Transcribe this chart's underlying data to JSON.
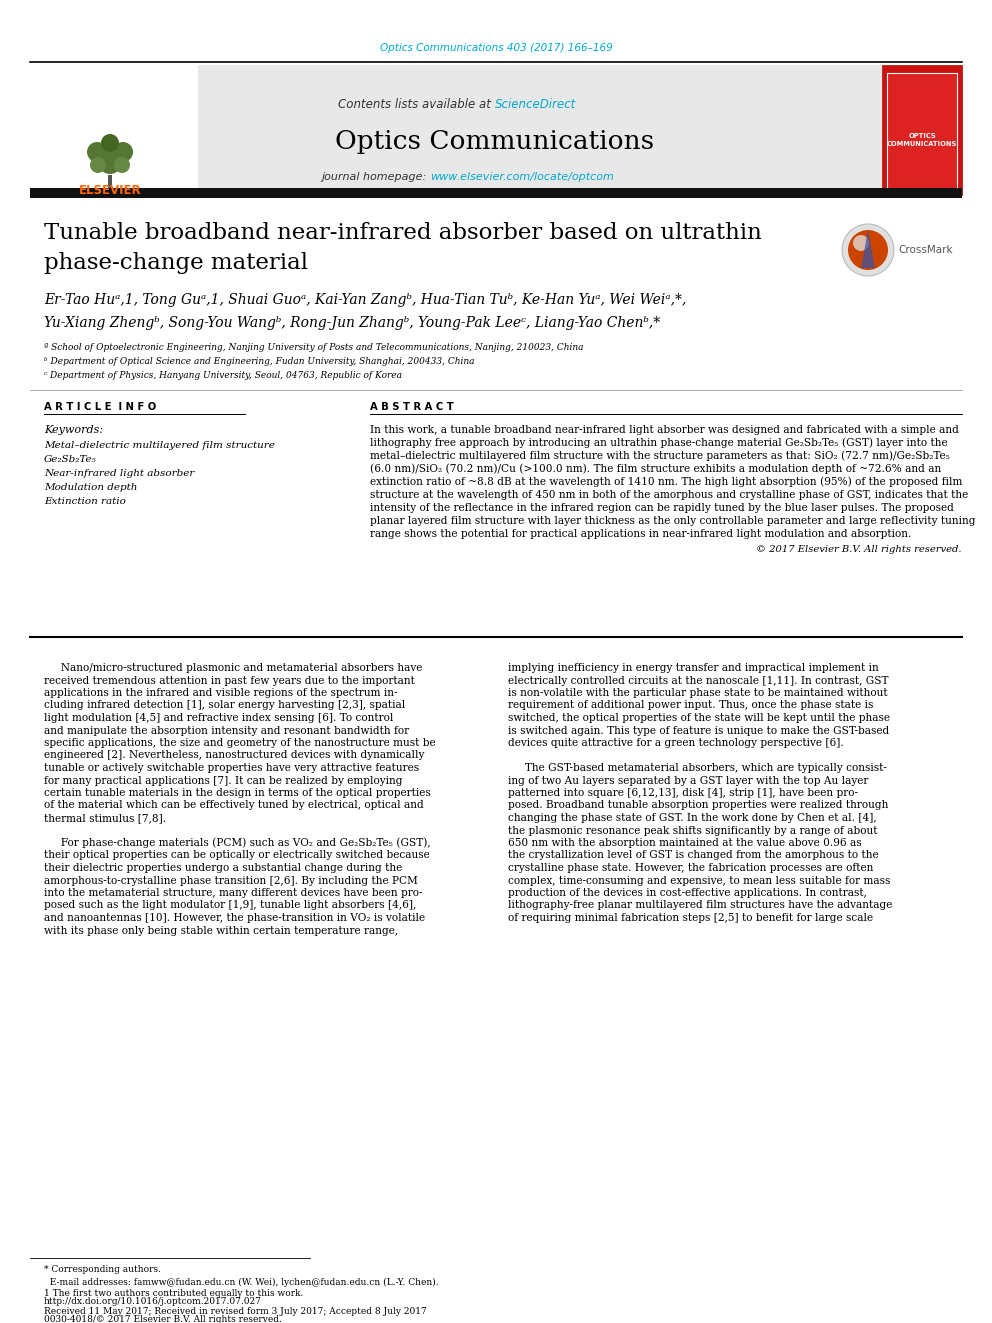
{
  "page_bg": "#ffffff",
  "header_journal_ref": "Optics Communications 403 (2017) 166–169",
  "header_journal_ref_color": "#00aacc",
  "journal_header_bg": "#e8e8e8",
  "journal_name": "Optics Communications",
  "contents_text": "Contents lists available at ",
  "sciencedirect_text": "ScienceDirect",
  "sciencedirect_color": "#00aacc",
  "journal_homepage": "journal homepage: ",
  "journal_url": "www.elsevier.com/locate/optcom",
  "journal_url_color": "#00aacc",
  "title_line1": "Tunable broadband near-infrared absorber based on ultrathin",
  "title_line2": "phase-change material",
  "authors_line1": "Er-Tao Huᵃ,1, Tong Guᵃ,1, Shuai Guoᵃ, Kai-Yan Zangᵇ, Hua-Tian Tuᵇ, Ke-Han Yuᵃ, Wei Weiᵃ,*,",
  "authors_line2": "Yu-Xiang Zhengᵇ, Song-You Wangᵇ, Rong-Jun Zhangᵇ, Young-Pak Leeᶜ, Liang-Yao Chenᵇ,*",
  "affil_a": "ª School of Optoelectronic Engineering, Nanjing University of Posts and Telecommunications, Nanjing, 210023, China",
  "affil_b": "ᵇ Department of Optical Science and Engineering, Fudan University, Shanghai, 200433, China",
  "affil_c": "ᶜ Department of Physics, Hanyang University, Seoul, 04763, Republic of Korea",
  "article_info_label": "A R T I C L E  I N F O",
  "abstract_label": "A B S T R A C T",
  "keywords_label": "Keywords:",
  "keywords": [
    "Metal–dielectric multilayered film structure",
    "Ge₂Sb₂Te₅",
    "Near-infrared light absorber",
    "Modulation depth",
    "Extinction ratio"
  ],
  "abstract_lines": [
    "In this work, a tunable broadband near-infrared light absorber was designed and fabricated with a simple and",
    "lithography free approach by introducing an ultrathin phase-change material Ge₂Sb₂Te₅ (GST) layer into the",
    "metal–dielectric multilayered film structure with the structure parameters as that: SiO₂ (72.7 nm)/Ge₂Sb₂Te₅",
    "(6.0 nm)/SiO₂ (70.2 nm)/Cu (>100.0 nm). The film structure exhibits a modulation depth of ~72.6% and an",
    "extinction ratio of ~8.8 dB at the wavelength of 1410 nm. The high light absorption (95%) of the proposed film",
    "structure at the wavelength of 450 nm in both of the amorphous and crystalline phase of GST, indicates that the",
    "intensity of the reflectance in the infrared region can be rapidly tuned by the blue laser pulses. The proposed",
    "planar layered film structure with layer thickness as the only controllable parameter and large reflectivity tuning",
    "range shows the potential for practical applications in near-infrared light modulation and absorption."
  ],
  "copyright_text": "© 2017 Elsevier B.V. All rights reserved.",
  "body_col1_lines": [
    "     Nano/micro-structured plasmonic and metamaterial absorbers have",
    "received tremendous attention in past few years due to the important",
    "applications in the infrared and visible regions of the spectrum in-",
    "cluding infrared detection [1], solar energy harvesting [2,3], spatial",
    "light modulation [4,5] and refractive index sensing [6]. To control",
    "and manipulate the absorption intensity and resonant bandwidth for",
    "specific applications, the size and geometry of the nanostructure must be",
    "engineered [2]. Nevertheless, nanostructured devices with dynamically",
    "tunable or actively switchable properties have very attractive features",
    "for many practical applications [7]. It can be realized by employing",
    "certain tunable materials in the design in terms of the optical properties",
    "of the material which can be effectively tuned by electrical, optical and",
    "thermal stimulus [7,8].",
    "",
    "     For phase-change materials (PCM) such as VO₂ and Ge₂Sb₂Te₅ (GST),",
    "their optical properties can be optically or electrically switched because",
    "their dielectric properties undergo a substantial change during the",
    "amorphous-to-crystalline phase transition [2,6]. By including the PCM",
    "into the metamaterial structure, many different devices have been pro-",
    "posed such as the light modulator [1,9], tunable light absorbers [4,6],",
    "and nanoantennas [10]. However, the phase-transition in VO₂ is volatile",
    "with its phase only being stable within certain temperature range,"
  ],
  "body_col2_lines": [
    "implying inefficiency in energy transfer and impractical implement in",
    "electrically controlled circuits at the nanoscale [1,11]. In contrast, GST",
    "is non-volatile with the particular phase state to be maintained without",
    "requirement of additional power input. Thus, once the phase state is",
    "switched, the optical properties of the state will be kept until the phase",
    "is switched again. This type of feature is unique to make the GST-based",
    "devices quite attractive for a green technology perspective [6].",
    "",
    "     The GST-based metamaterial absorbers, which are typically consist-",
    "ing of two Au layers separated by a GST layer with the top Au layer",
    "patterned into square [6,12,13], disk [4], strip [1], have been pro-",
    "posed. Broadband tunable absorption properties were realized through",
    "changing the phase state of GST. In the work done by Chen et al. [4],",
    "the plasmonic resonance peak shifts significantly by a range of about",
    "650 nm with the absorption maintained at the value above 0.96 as",
    "the crystallization level of GST is changed from the amorphous to the",
    "crystalline phase state. However, the fabrication processes are often",
    "complex, time-consuming and expensive, to mean less suitable for mass",
    "production of the devices in cost-effective applications. In contrast,",
    "lithography-free planar multilayered film structures have the advantage",
    "of requiring minimal fabrication steps [2,5] to benefit for large scale"
  ],
  "footer_star": "* Corresponding authors.",
  "footer_email": "  E-mail addresses: famww@fudan.edu.cn (W. Wei), lychen@fudan.edu.cn (L.-Y. Chen).",
  "footer_note": "1 The first two authors contributed equally to this work.",
  "doi_text": "http://dx.doi.org/10.1016/j.optcom.2017.07.027",
  "received_line1": "Received 11 May 2017; Received in revised form 3 July 2017; Accepted 8 July 2017",
  "received_line2": "0030-4018/© 2017 Elsevier B.V. All rights reserved."
}
